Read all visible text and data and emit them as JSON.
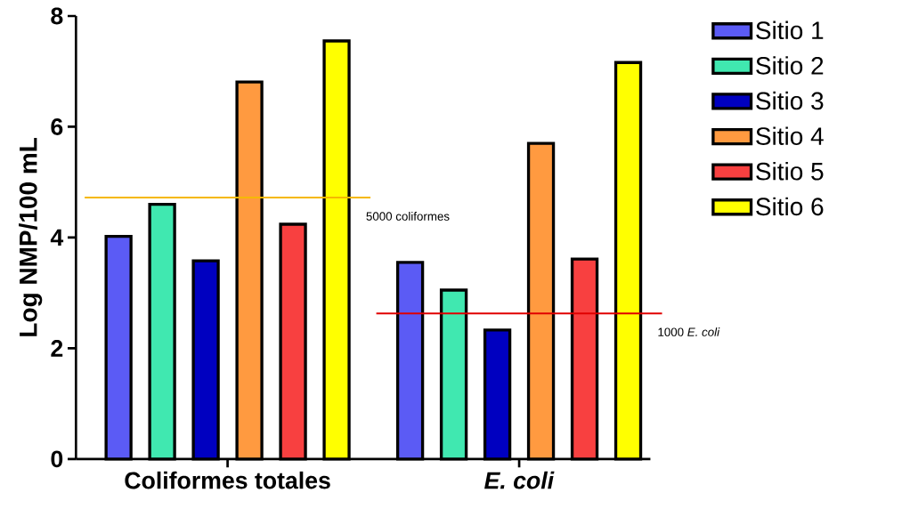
{
  "chart_data": {
    "type": "bar",
    "ylabel": "Log NMP/100 mL",
    "categories": [
      "Coliformes totales",
      "*E. coli*"
    ],
    "series": [
      {
        "name": "Sitio 1",
        "color": "#5b5bf5",
        "values": [
          4.02,
          3.55
        ]
      },
      {
        "name": "Sitio 2",
        "color": "#40e8b0",
        "values": [
          4.6,
          3.05
        ]
      },
      {
        "name": "Sitio 3",
        "color": "#0000c0",
        "values": [
          3.58,
          2.33
        ]
      },
      {
        "name": "Sitio 4",
        "color": "#ff9a40",
        "values": [
          6.81,
          5.7
        ]
      },
      {
        "name": "Sitio 5",
        "color": "#f84040",
        "values": [
          4.24,
          3.61
        ]
      },
      {
        "name": "Sitio 6",
        "color": "#ffff00",
        "values": [
          7.55,
          7.16
        ]
      }
    ],
    "ylim": [
      0,
      8
    ],
    "yticks": [
      0,
      2,
      4,
      6,
      8
    ],
    "grid": false,
    "legend": "right",
    "ref_lines": [
      {
        "axis": "y",
        "value": 4.72,
        "label": "5000 coliformes",
        "color": "#f5b800"
      },
      {
        "axis": "y",
        "value": 2.63,
        "label": "1000 *E. coli*",
        "color": "#e00000"
      }
    ]
  }
}
